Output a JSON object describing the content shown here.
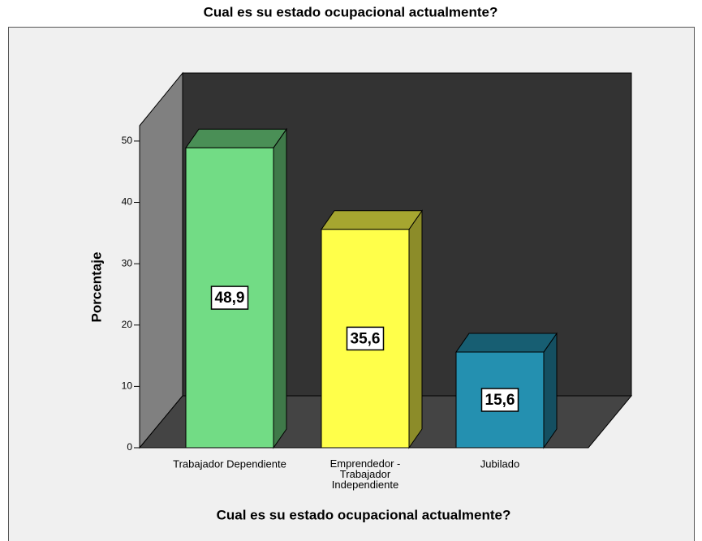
{
  "chart_data": {
    "type": "bar",
    "title": "Cual es su estado ocupacional actualmente?",
    "xlabel": "Cual es su estado ocupacional actualmente?",
    "ylabel": "Porcentaje",
    "categories": [
      "Trabajador Dependiente",
      "Emprendedor - Trabajador Independiente",
      "Jubilado"
    ],
    "values": [
      48.9,
      35.6,
      15.6
    ],
    "value_labels": [
      "48,9",
      "35,6",
      "15,6"
    ],
    "colors": [
      "#72dc85",
      "#ffff4a",
      "#2490b0"
    ],
    "ylim": [
      0,
      52.5
    ],
    "yticks": [
      0,
      10,
      20,
      30,
      40,
      50
    ]
  }
}
